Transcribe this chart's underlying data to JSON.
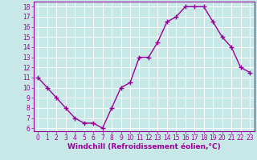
{
  "x": [
    0,
    1,
    2,
    3,
    4,
    5,
    6,
    7,
    8,
    9,
    10,
    11,
    12,
    13,
    14,
    15,
    16,
    17,
    18,
    19,
    20,
    21,
    22,
    23
  ],
  "y": [
    11,
    10,
    9,
    8,
    7,
    6.5,
    6.5,
    6,
    8,
    10,
    10.5,
    13,
    13,
    14.5,
    16.5,
    17,
    18,
    18,
    18,
    16.5,
    15,
    14,
    12,
    11.5
  ],
  "line_color": "#990099",
  "marker": "+",
  "marker_size": 4,
  "bg_color": "#c8e8e8",
  "grid_color": "#ffffff",
  "xlabel": "Windchill (Refroidissement éolien,°C)",
  "xlabel_color": "#990099",
  "xlabel_fontsize": 6.5,
  "ylim_min": 5.7,
  "ylim_max": 18.5,
  "xlim_min": -0.5,
  "xlim_max": 23.5,
  "yticks": [
    6,
    7,
    8,
    9,
    10,
    11,
    12,
    13,
    14,
    15,
    16,
    17,
    18
  ],
  "xticks": [
    0,
    1,
    2,
    3,
    4,
    5,
    6,
    7,
    8,
    9,
    10,
    11,
    12,
    13,
    14,
    15,
    16,
    17,
    18,
    19,
    20,
    21,
    22,
    23
  ],
  "tick_fontsize": 5.5,
  "tick_color": "#990099",
  "line_width": 1.0,
  "spine_color": "#990099"
}
